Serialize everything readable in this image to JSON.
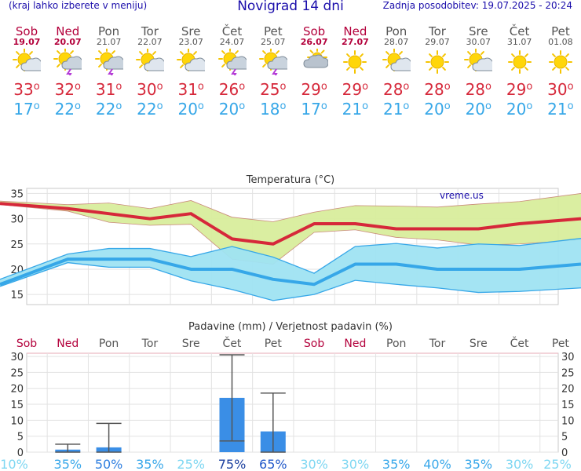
{
  "header": {
    "left": "(kraj lahko izberete v meniju)",
    "title": "Novigrad 14 dni",
    "updated": "Zadnja posodobitev: 19.07.2025 - 20:24"
  },
  "days": [
    {
      "name": "Sob",
      "date": "19.07",
      "weekend": true,
      "icon": "sun-cloud-icon",
      "tmax": "33",
      "tmin": "17"
    },
    {
      "name": "Ned",
      "date": "20.07",
      "weekend": true,
      "icon": "storm-sun-icon",
      "tmax": "32",
      "tmin": "22"
    },
    {
      "name": "Pon",
      "date": "21.07",
      "weekend": false,
      "icon": "storm-sun-icon",
      "tmax": "31",
      "tmin": "22"
    },
    {
      "name": "Tor",
      "date": "22.07",
      "weekend": false,
      "icon": "sun-cloud-icon",
      "tmax": "30",
      "tmin": "22"
    },
    {
      "name": "Sre",
      "date": "23.07",
      "weekend": false,
      "icon": "sun-cloud-icon",
      "tmax": "31",
      "tmin": "20"
    },
    {
      "name": "Čet",
      "date": "24.07",
      "weekend": false,
      "icon": "storm-sun-icon",
      "tmax": "26",
      "tmin": "20"
    },
    {
      "name": "Pet",
      "date": "25.07",
      "weekend": false,
      "icon": "storm-sun-icon",
      "tmax": "25",
      "tmin": "18"
    },
    {
      "name": "Sob",
      "date": "26.07",
      "weekend": true,
      "icon": "cloudy-icon",
      "tmax": "29",
      "tmin": "17"
    },
    {
      "name": "Ned",
      "date": "27.07",
      "weekend": true,
      "icon": "sun-icon",
      "tmax": "29",
      "tmin": "21"
    },
    {
      "name": "Pon",
      "date": "28.07",
      "weekend": false,
      "icon": "sun-cloud-icon",
      "tmax": "28",
      "tmin": "21"
    },
    {
      "name": "Tor",
      "date": "29.07",
      "weekend": false,
      "icon": "sun-icon",
      "tmax": "28",
      "tmin": "20"
    },
    {
      "name": "Sre",
      "date": "30.07",
      "weekend": false,
      "icon": "sun-cloud-icon",
      "tmax": "28",
      "tmin": "20"
    },
    {
      "name": "Čet",
      "date": "31.07",
      "weekend": false,
      "icon": "sun-icon",
      "tmax": "29",
      "tmin": "20"
    },
    {
      "name": "Pet",
      "date": "01.08",
      "weekend": false,
      "icon": "sun-icon",
      "tmax": "30",
      "tmin": "21"
    }
  ],
  "colors": {
    "max": "#d6283a",
    "min": "#36a7e8",
    "weekend": "#b3003b",
    "bar": "#3a8ee6",
    "maxband": "#d8ed9c",
    "minband": "#9fe3f2"
  },
  "chart_data": [
    {
      "type": "line",
      "title": "Temperatura (°C)",
      "watermark": "vreme.us",
      "ylim": [
        13,
        36
      ],
      "yticks": [
        15,
        20,
        25,
        30,
        35
      ],
      "x": [
        0,
        1,
        2,
        3,
        4,
        5,
        6,
        7,
        8,
        9,
        10,
        11,
        12,
        13
      ],
      "series": [
        {
          "name": "max",
          "values": [
            33,
            32,
            31,
            30,
            31,
            26,
            25,
            29,
            29,
            28,
            28,
            28,
            29,
            30
          ],
          "band_low": [
            32.8,
            31.5,
            29.3,
            28.7,
            28.9,
            22,
            21,
            27.3,
            27.8,
            26.3,
            25.8,
            24.8,
            25,
            25.8
          ],
          "band_high": [
            33.5,
            32.8,
            33.1,
            32,
            33.6,
            30.3,
            29.4,
            31.3,
            32.6,
            32.5,
            32.3,
            32.9,
            33.4,
            35
          ]
        },
        {
          "name": "min",
          "values": [
            17,
            22,
            22,
            22,
            20,
            20,
            18,
            17,
            21,
            21,
            20,
            20,
            20,
            21
          ],
          "band_low": [
            16.6,
            21.3,
            20.4,
            20.4,
            17.7,
            16,
            13.8,
            15,
            17.8,
            17,
            16.3,
            15.4,
            15.6,
            16.3
          ],
          "band_high": [
            18,
            23,
            24.1,
            24.1,
            22.5,
            24.5,
            22.4,
            19.2,
            24.5,
            25.1,
            24.2,
            25,
            24.7,
            26.1
          ]
        }
      ]
    },
    {
      "type": "bar",
      "title": "Padavine (mm) / Verjetnost padavin (%)",
      "ylim": [
        0,
        31
      ],
      "yticks": [
        0,
        5,
        10,
        15,
        20,
        25,
        30
      ],
      "categories": [
        "Sob",
        "Ned",
        "Pon",
        "Tor",
        "Sre",
        "Čet",
        "Pet",
        "Sob",
        "Ned",
        "Pon",
        "Tor",
        "Sre",
        "Čet",
        "Pet"
      ],
      "values": [
        0,
        0.8,
        1.5,
        0,
        0,
        17,
        6.5,
        0,
        0,
        0,
        0,
        0,
        0,
        0
      ],
      "error_low": [
        0,
        0,
        0,
        0,
        0,
        3.5,
        0,
        0,
        0,
        0,
        0,
        0,
        0,
        0
      ],
      "error_high": [
        0,
        2.5,
        9,
        0,
        0,
        31,
        18.5,
        0,
        0,
        0,
        0,
        0,
        0,
        0
      ],
      "probability": [
        "10%",
        "35%",
        "50%",
        "35%",
        "25%",
        "75%",
        "65%",
        "30%",
        "30%",
        "35%",
        "40%",
        "35%",
        "30%",
        "25%"
      ]
    }
  ]
}
